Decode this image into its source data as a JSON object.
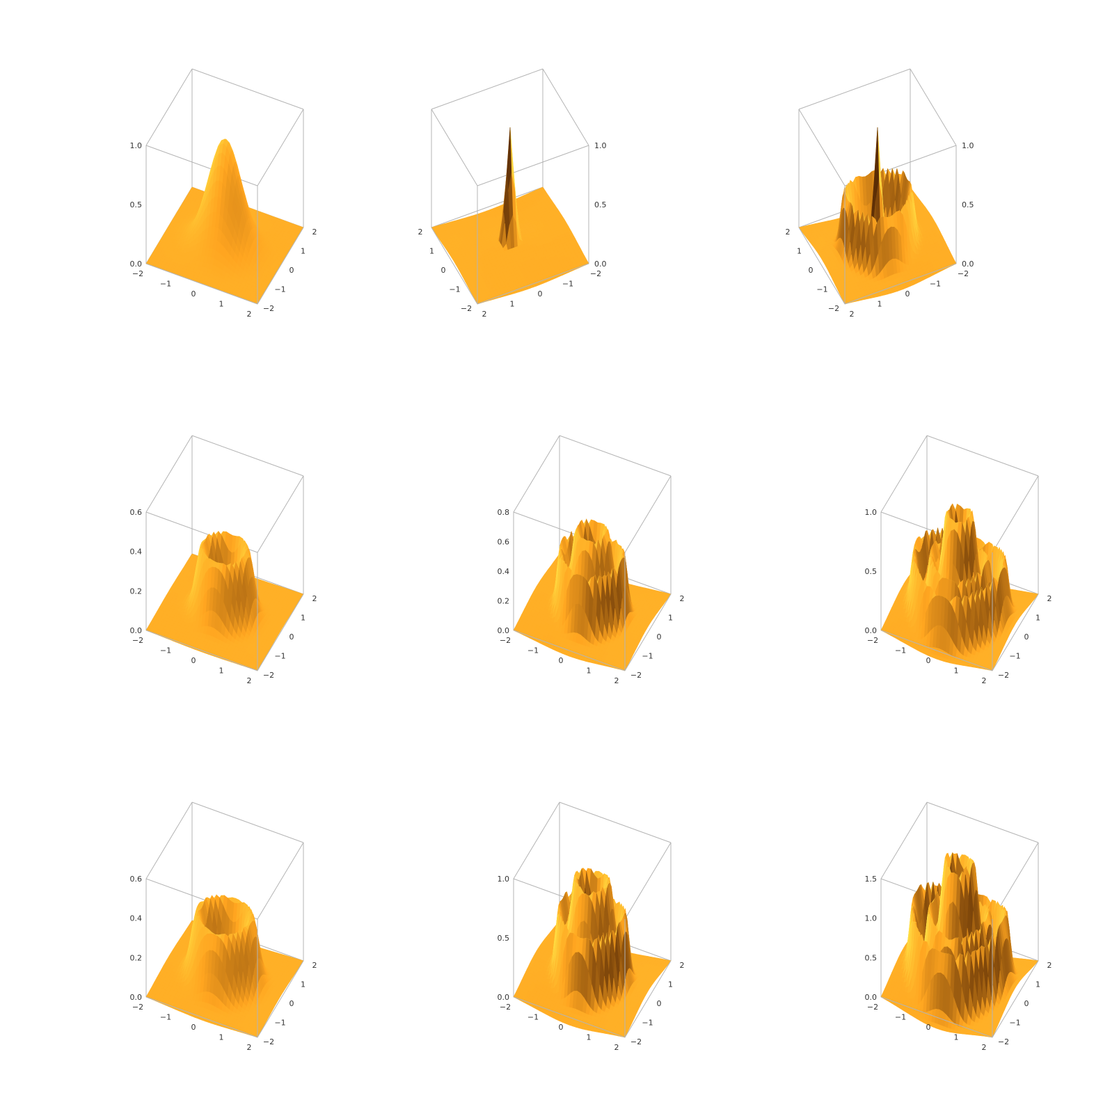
{
  "colors": {
    "surface_light": "#ffe84a",
    "surface_mid": "#ffa520",
    "surface_dark": "#5a2c05",
    "box": "#b4b4b4",
    "tick_text": "#333333",
    "background": "#ffffff"
  },
  "chart_data": [
    {
      "type": "surface3d",
      "mirrored": false,
      "xlim": [
        -2,
        2
      ],
      "ylim": [
        -2,
        2
      ],
      "zlim": [
        0,
        1.0
      ],
      "x_ticks": [
        "-2",
        "-1",
        "0",
        "1",
        "2"
      ],
      "y_ticks": [
        "-2",
        "-1",
        "0",
        "1",
        "2"
      ],
      "z_ticks": [
        "0.0",
        "0.5",
        "1.0"
      ],
      "surface": {
        "rings": 0,
        "ring_amp": 0,
        "center": "peak",
        "center_height": 0.9,
        "center_width": 0.55,
        "edge_warp": 0.0
      }
    },
    {
      "type": "surface3d",
      "mirrored": true,
      "xlim": [
        -2,
        2
      ],
      "ylim": [
        -2,
        2
      ],
      "zlim": [
        0,
        1.0
      ],
      "x_ticks": [
        "-2",
        "-1",
        "0",
        "1",
        "2"
      ],
      "y_ticks": [
        "-2",
        "-1",
        "0",
        "1",
        "2"
      ],
      "z_ticks": [
        "0.0",
        "0.5",
        "1.0"
      ],
      "surface": {
        "rings": 0,
        "ring_amp": 0,
        "center": "spike",
        "center_height": 0.95,
        "center_width": 0.35,
        "edge_warp": 0.25
      }
    },
    {
      "type": "surface3d",
      "mirrored": true,
      "xlim": [
        -2,
        2
      ],
      "ylim": [
        -2,
        2
      ],
      "zlim": [
        0,
        1.0
      ],
      "x_ticks": [
        "-2",
        "-1",
        "0",
        "1",
        "2"
      ],
      "y_ticks": [
        "-2",
        "-1",
        "0",
        "1",
        "2"
      ],
      "z_ticks": [
        "0.0",
        "0.5",
        "1.0"
      ],
      "surface": {
        "rings": 1,
        "ring_amp": 0.45,
        "center": "spike",
        "center_height": 0.95,
        "center_width": 0.3,
        "edge_warp": 0.45
      }
    },
    {
      "type": "surface3d",
      "mirrored": false,
      "xlim": [
        -2,
        2
      ],
      "ylim": [
        -2,
        2
      ],
      "zlim": [
        0,
        0.6
      ],
      "x_ticks": [
        "-2",
        "-1",
        "0",
        "1",
        "2"
      ],
      "y_ticks": [
        "-2",
        "-1",
        "0",
        "1",
        "2"
      ],
      "z_ticks": [
        "0.0",
        "0.2",
        "0.4",
        "0.6"
      ],
      "surface": {
        "rings": 0,
        "ring_amp": 0,
        "center": "crater",
        "center_height": 0.55,
        "center_width": 0.75,
        "edge_warp": 0.1
      }
    },
    {
      "type": "surface3d",
      "mirrored": false,
      "xlim": [
        -2,
        2
      ],
      "ylim": [
        -2,
        2
      ],
      "zlim": [
        0,
        0.8
      ],
      "x_ticks": [
        "-2",
        "-1",
        "0",
        "1",
        "2"
      ],
      "y_ticks": [
        "-2",
        "-1",
        "0",
        "1",
        "2"
      ],
      "z_ticks": [
        "0.0",
        "0.2",
        "0.4",
        "0.6",
        "0.8"
      ],
      "surface": {
        "rings": 1,
        "ring_amp": 0.5,
        "center": "crater",
        "center_height": 0.7,
        "center_width": 0.5,
        "edge_warp": 0.4
      }
    },
    {
      "type": "surface3d",
      "mirrored": false,
      "xlim": [
        -2,
        2
      ],
      "ylim": [
        -2,
        2
      ],
      "zlim": [
        0,
        1.0
      ],
      "x_ticks": [
        "-2",
        "-1",
        "0",
        "1",
        "2"
      ],
      "y_ticks": [
        "-2",
        "-1",
        "0",
        "1",
        "2"
      ],
      "z_ticks": [
        "0.0",
        "0.5",
        "1.0"
      ],
      "surface": {
        "rings": 2,
        "ring_amp": 0.45,
        "center": "crater",
        "center_height": 0.85,
        "center_width": 0.4,
        "edge_warp": 0.6
      }
    },
    {
      "type": "surface3d",
      "mirrored": false,
      "xlim": [
        -2,
        2
      ],
      "ylim": [
        -2,
        2
      ],
      "zlim": [
        0,
        0.6
      ],
      "x_ticks": [
        "-2",
        "-1",
        "0",
        "1",
        "2"
      ],
      "y_ticks": [
        "-2",
        "-1",
        "0",
        "1",
        "2"
      ],
      "z_ticks": [
        "0.0",
        "0.2",
        "0.4",
        "0.6"
      ],
      "surface": {
        "rings": 0,
        "ring_amp": 0,
        "center": "crater",
        "center_height": 0.55,
        "center_width": 0.9,
        "edge_warp": 0.2
      }
    },
    {
      "type": "surface3d",
      "mirrored": false,
      "xlim": [
        -2,
        2
      ],
      "ylim": [
        -2,
        2
      ],
      "zlim": [
        0,
        1.0
      ],
      "x_ticks": [
        "-2",
        "-1",
        "0",
        "1",
        "2"
      ],
      "y_ticks": [
        "-2",
        "-1",
        "0",
        "1",
        "2"
      ],
      "z_ticks": [
        "0.0",
        "0.5",
        "1.0"
      ],
      "surface": {
        "rings": 1,
        "ring_amp": 0.55,
        "center": "crater",
        "center_height": 0.85,
        "center_width": 0.55,
        "edge_warp": 0.55
      }
    },
    {
      "type": "surface3d",
      "mirrored": false,
      "xlim": [
        -2,
        2
      ],
      "ylim": [
        -2,
        2
      ],
      "zlim": [
        0,
        1.5
      ],
      "x_ticks": [
        "-2",
        "-1",
        "0",
        "1",
        "2"
      ],
      "y_ticks": [
        "-2",
        "-1",
        "0",
        "1",
        "2"
      ],
      "z_ticks": [
        "0.0",
        "0.5",
        "1.0",
        "1.5"
      ],
      "surface": {
        "rings": 2,
        "ring_amp": 0.55,
        "center": "crater",
        "center_height": 1.0,
        "center_width": 0.45,
        "edge_warp": 0.8
      }
    }
  ]
}
